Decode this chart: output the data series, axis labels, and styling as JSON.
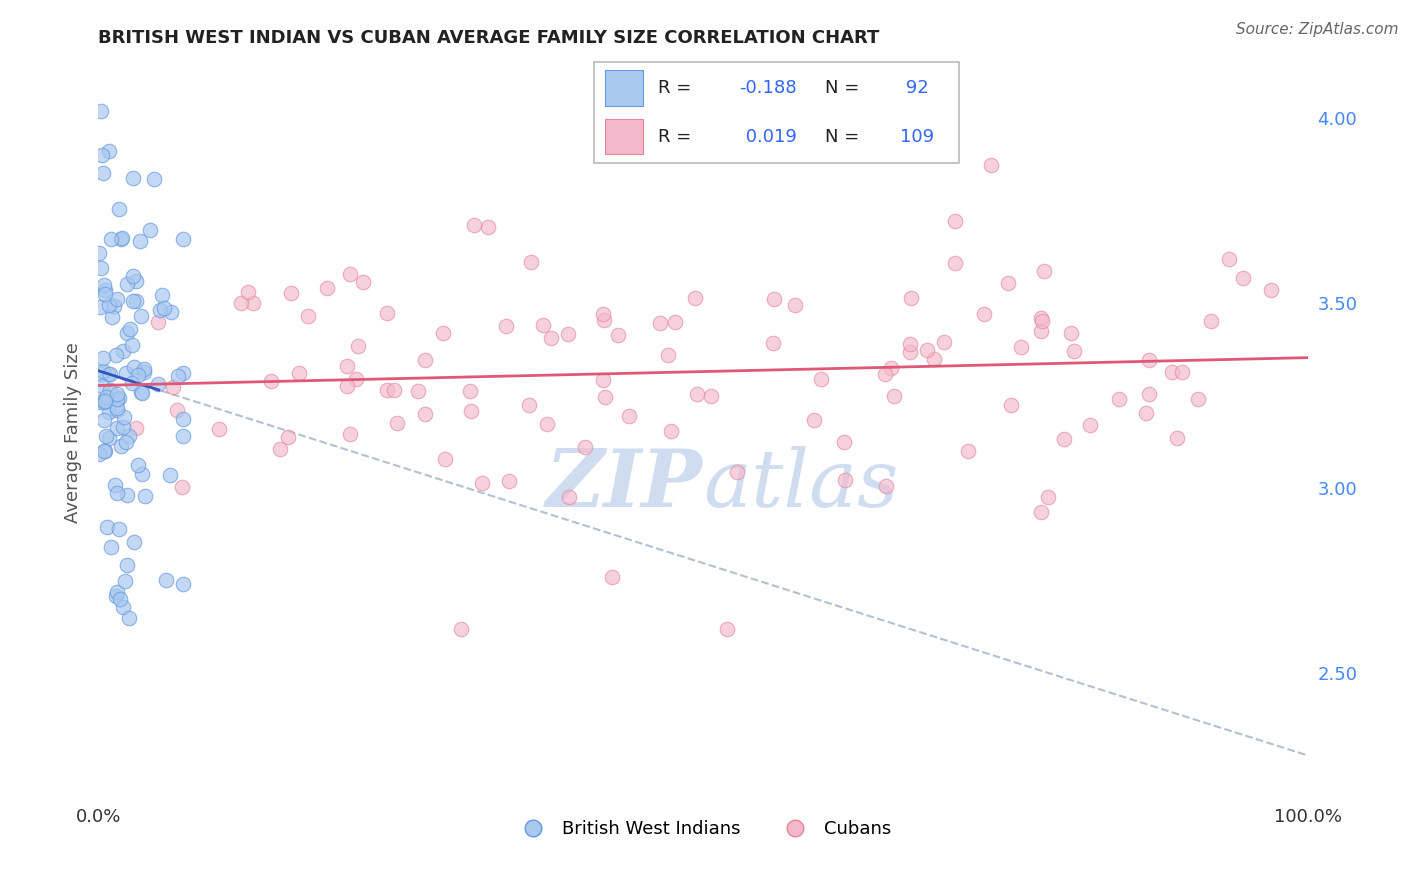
{
  "title": "BRITISH WEST INDIAN VS CUBAN AVERAGE FAMILY SIZE CORRELATION CHART",
  "source_text": "Source: ZipAtlas.com",
  "ylabel": "Average Family Size",
  "xlim": [
    0.0,
    100.0
  ],
  "ylim": [
    2.15,
    4.15
  ],
  "yticks_right": [
    2.5,
    3.0,
    3.5,
    4.0
  ],
  "xticklabels_pos": [
    0.0,
    100.0
  ],
  "xticklabels": [
    "0.0%",
    "100.0%"
  ],
  "blue_color": "#a8c8f0",
  "blue_edge_color": "#6699dd",
  "pink_color": "#f4b8cc",
  "pink_edge_color": "#e08898",
  "blue_trend_color": "#3355bb",
  "pink_trend_color": "#e05878",
  "gray_dash_color": "#aabbcc",
  "grid_color": "#cccccc",
  "background_color": "#ffffff",
  "title_color": "#222222",
  "right_axis_color": "#4488ff",
  "watermark_color": "#c8d8ee",
  "blue_n": 92,
  "pink_n": 109,
  "blue_r": -0.188,
  "pink_r": 0.019
}
